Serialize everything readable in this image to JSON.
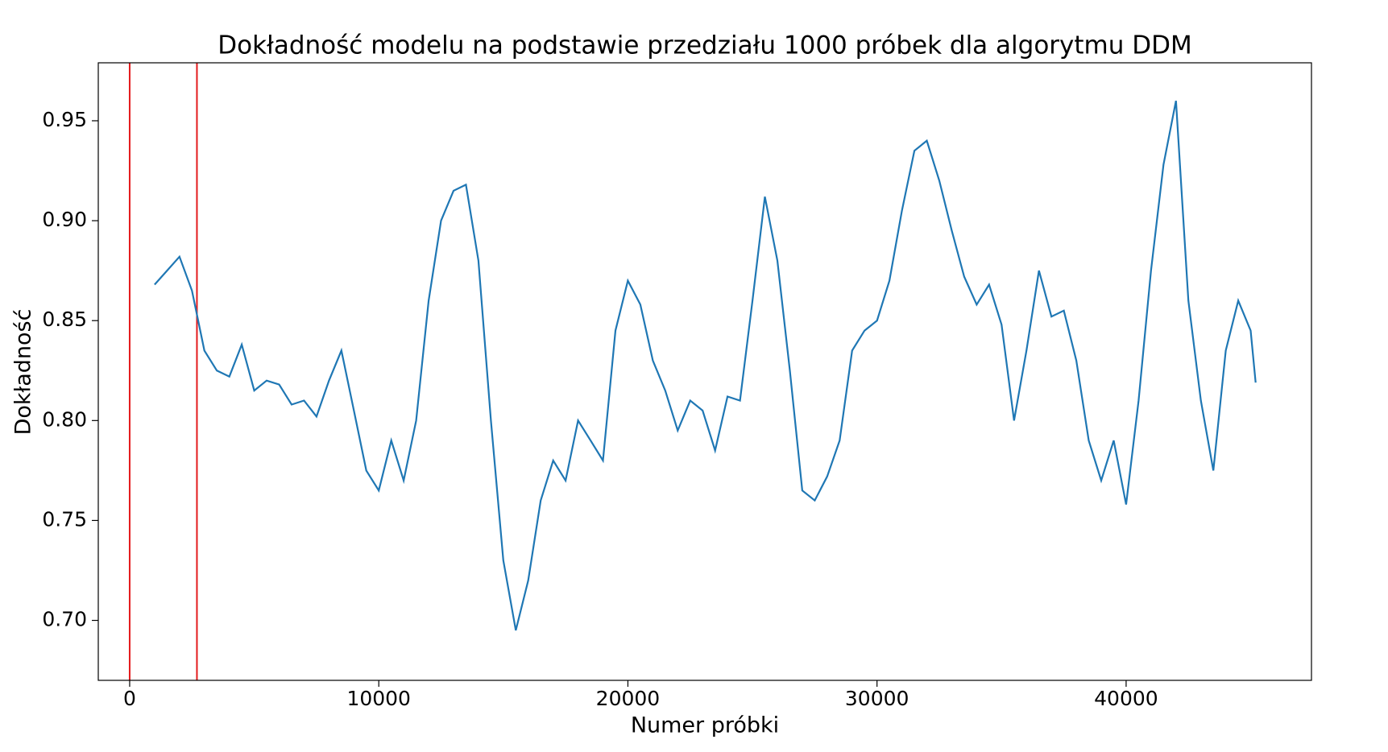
{
  "chart_data": {
    "type": "line",
    "title": "Dokładność modelu na podstawie przedziału 1000 próbek dla algorytmu DDM",
    "x_label": "Numer próbki",
    "y_label": "Dokładność",
    "x": [
      1000,
      1500,
      2000,
      2500,
      3000,
      3500,
      4000,
      4500,
      5000,
      5500,
      6000,
      6500,
      7000,
      7500,
      8000,
      8500,
      9000,
      9500,
      10000,
      10500,
      11000,
      11500,
      12000,
      12500,
      13000,
      13500,
      14000,
      14500,
      15000,
      15500,
      16000,
      16500,
      17000,
      17500,
      18000,
      18500,
      19000,
      19500,
      20000,
      20500,
      21000,
      21500,
      22000,
      22500,
      23000,
      23500,
      24000,
      24500,
      25000,
      25500,
      26000,
      26500,
      27000,
      27500,
      28000,
      28500,
      29000,
      29500,
      30000,
      30500,
      31000,
      31500,
      32000,
      32500,
      33000,
      33500,
      34000,
      34500,
      35000,
      35500,
      36000,
      36500,
      37000,
      37500,
      38000,
      38500,
      39000,
      39500,
      40000,
      40500,
      41000,
      41500,
      42000,
      42500,
      43000,
      43500,
      44000,
      44500,
      45000,
      45200
    ],
    "series": [
      {
        "color": "#1f77b4",
        "values": [
          0.868,
          0.875,
          0.882,
          0.865,
          0.835,
          0.825,
          0.822,
          0.838,
          0.815,
          0.82,
          0.818,
          0.808,
          0.81,
          0.802,
          0.82,
          0.835,
          0.805,
          0.775,
          0.765,
          0.79,
          0.77,
          0.8,
          0.86,
          0.9,
          0.915,
          0.918,
          0.88,
          0.8,
          0.73,
          0.695,
          0.72,
          0.76,
          0.78,
          0.77,
          0.8,
          0.79,
          0.78,
          0.845,
          0.87,
          0.858,
          0.83,
          0.815,
          0.795,
          0.81,
          0.805,
          0.785,
          0.812,
          0.81,
          0.86,
          0.912,
          0.88,
          0.825,
          0.765,
          0.76,
          0.772,
          0.79,
          0.835,
          0.845,
          0.85,
          0.87,
          0.905,
          0.935,
          0.94,
          0.92,
          0.895,
          0.872,
          0.858,
          0.868,
          0.848,
          0.8,
          0.835,
          0.875,
          0.852,
          0.855,
          0.83,
          0.79,
          0.77,
          0.79,
          0.758,
          0.81,
          0.875,
          0.928,
          0.96,
          0.86,
          0.81,
          0.775,
          0.835,
          0.86,
          0.845,
          0.819
        ]
      }
    ],
    "drift_points": [
      0,
      2700
    ],
    "drift_color": "#e41a1c",
    "xlim": [
      -1260,
      47440
    ],
    "xticks": [
      0,
      10000,
      20000,
      30000,
      40000
    ],
    "ylim": [
      0.67,
      0.979
    ],
    "yticks": [
      {
        "value": 0.7,
        "label": "0.70"
      },
      0.75,
      {
        "value": 0.8,
        "label": "0.80"
      },
      0.85,
      {
        "value": 0.9,
        "label": "0.90"
      },
      0.95
    ]
  }
}
